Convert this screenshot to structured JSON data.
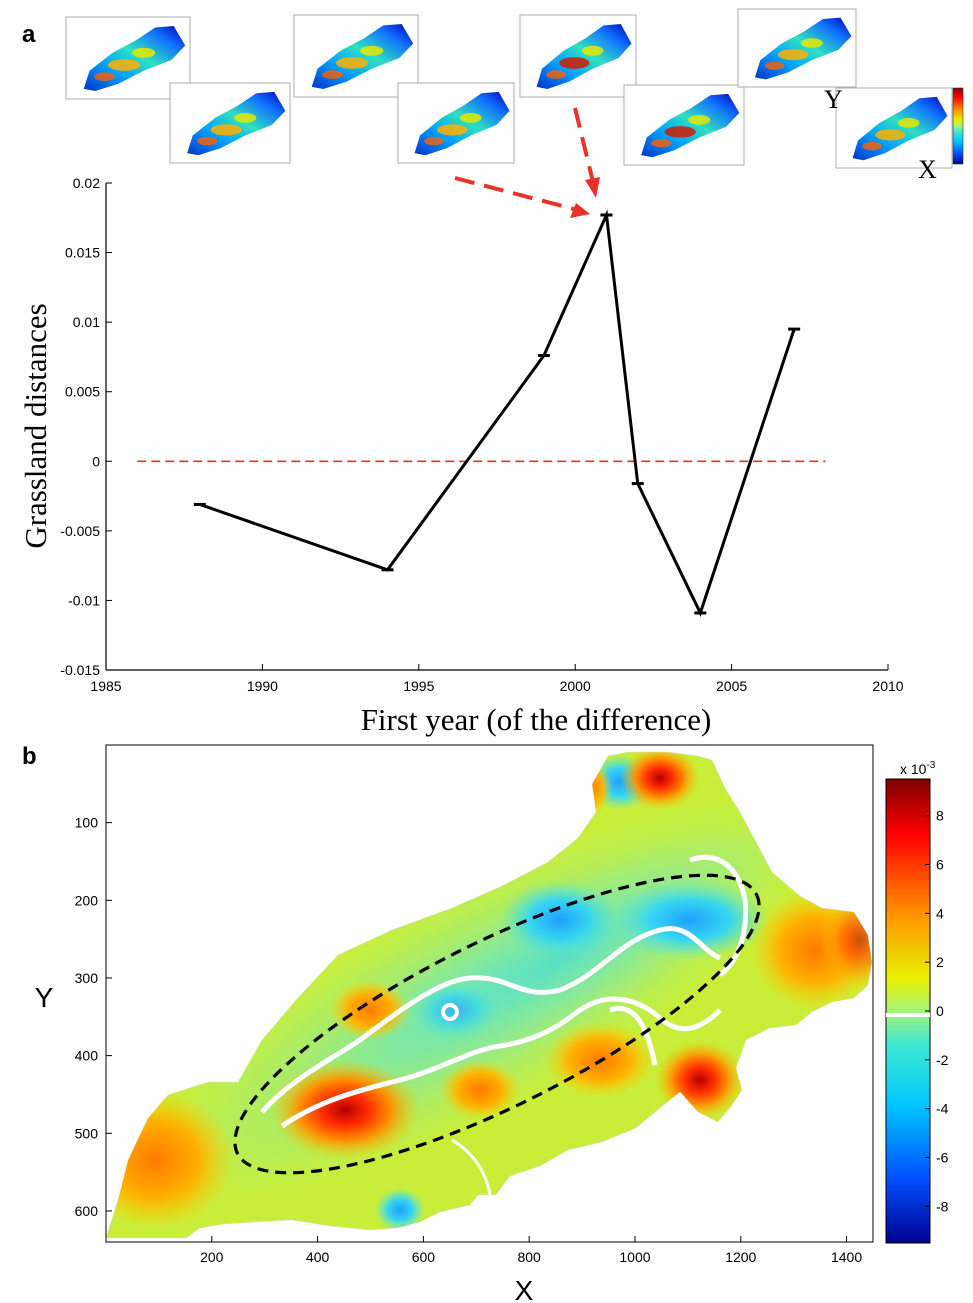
{
  "panel_a_label": "a",
  "panel_b_label": "b",
  "thumbnail_axis_letters": {
    "y": "Y",
    "x": "X"
  },
  "chart_data": [
    {
      "type": "line",
      "panel": "a",
      "xlabel": "First year (of the difference)",
      "ylabel": "Grassland distances",
      "xlim": [
        1985,
        2010
      ],
      "ylim": [
        -0.015,
        0.02
      ],
      "xticks": [
        "1985",
        "1990",
        "1995",
        "2000",
        "2005",
        "2010"
      ],
      "yticks": [
        "-0.015",
        "-0.01",
        "-0.005",
        "0",
        "0.005",
        "0.01",
        "0.015",
        "0.02"
      ],
      "series": [
        {
          "color": "#000000",
          "x": [
            1988,
            1994,
            1999,
            2001,
            2002,
            2004,
            2007
          ],
          "y": [
            -0.0031,
            -0.0078,
            0.0076,
            0.0177,
            -0.0016,
            -0.0109,
            0.0095
          ]
        }
      ],
      "reference_line": {
        "y": 0,
        "x_range": [
          1986,
          2008
        ],
        "color": "#e8322a",
        "style": "dashed"
      },
      "annotation_arrows_color": "#e8322a",
      "grid": false
    },
    {
      "type": "heatmap",
      "panel": "b",
      "xlabel": "X",
      "ylabel": "Y",
      "xticks": [
        "200",
        "400",
        "600",
        "800",
        "1000",
        "1200",
        "1400"
      ],
      "yticks": [
        "100",
        "200",
        "300",
        "400",
        "500",
        "600"
      ],
      "xlim": [
        0,
        1450
      ],
      "ylim": [
        640,
        0
      ],
      "colorbar": {
        "multiplier": "x 10",
        "exponent": "-3",
        "ticks": [
          "8",
          "6",
          "4",
          "2",
          "0",
          "-2",
          "-4",
          "-6",
          "-8"
        ],
        "range": [
          -9.5,
          9.5
        ],
        "colormap": "jet"
      },
      "ellipse": {
        "style": "dashed",
        "color": "#000000"
      }
    }
  ]
}
